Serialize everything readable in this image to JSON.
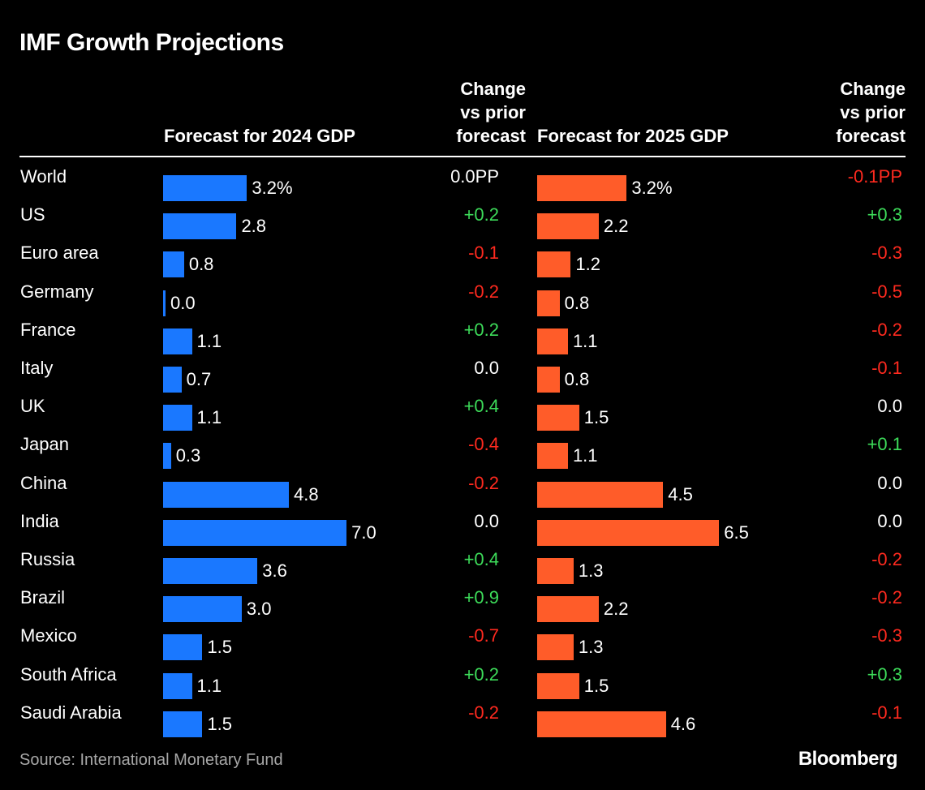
{
  "title": "IMF Growth Projections",
  "headers": {
    "gdp_2024": "Forecast for 2024 GDP",
    "change_2024": [
      "Change",
      "vs prior",
      "forecast"
    ],
    "gdp_2025": "Forecast for 2025 GDP",
    "change_2025": [
      "Change",
      "vs prior",
      "forecast"
    ]
  },
  "source": "Source: International Monetary Fund",
  "brand": "Bloomberg",
  "colors": {
    "bar_2024": "#1a78ff",
    "bar_2025": "#ff5c29",
    "positive": "#3ddc5a",
    "negative": "#ff2a1f",
    "neutral": "#ffffff"
  },
  "chart_data": {
    "type": "bar",
    "orientation": "horizontal",
    "title": "IMF Growth Projections",
    "categories": [
      "World",
      "US",
      "Euro area",
      "Germany",
      "France",
      "Italy",
      "UK",
      "Japan",
      "China",
      "India",
      "Russia",
      "Brazil",
      "Mexico",
      "South Africa",
      "Saudi Arabia"
    ],
    "series": [
      {
        "name": "Forecast for 2024 GDP",
        "values": [
          3.2,
          2.8,
          0.8,
          0.0,
          1.1,
          0.7,
          1.1,
          0.3,
          4.8,
          7.0,
          3.6,
          3.0,
          1.5,
          1.1,
          1.5
        ],
        "labels": [
          "3.2%",
          "2.8",
          "0.8",
          "0.0",
          "1.1",
          "0.7",
          "1.1",
          "0.3",
          "4.8",
          "7.0",
          "3.6",
          "3.0",
          "1.5",
          "1.1",
          "1.5"
        ]
      },
      {
        "name": "Forecast for 2025 GDP",
        "values": [
          3.2,
          2.2,
          1.2,
          0.8,
          1.1,
          0.8,
          1.5,
          1.1,
          4.5,
          6.5,
          1.3,
          2.2,
          1.3,
          1.5,
          4.6
        ],
        "labels": [
          "3.2%",
          "2.2",
          "1.2",
          "0.8",
          "1.1",
          "0.8",
          "1.5",
          "1.1",
          "4.5",
          "6.5",
          "1.3",
          "2.2",
          "1.3",
          "1.5",
          "4.6"
        ]
      }
    ],
    "changes": [
      {
        "name": "Change vs prior forecast (2024)",
        "values": [
          0.0,
          0.2,
          -0.1,
          -0.2,
          0.2,
          0.0,
          0.4,
          -0.4,
          -0.2,
          0.0,
          0.4,
          0.9,
          -0.7,
          0.2,
          -0.2
        ],
        "labels": [
          "0.0PP",
          "+0.2",
          "-0.1",
          "-0.2",
          "+0.2",
          "0.0",
          "+0.4",
          "-0.4",
          "-0.2",
          "0.0",
          "+0.4",
          "+0.9",
          "-0.7",
          "+0.2",
          "-0.2"
        ]
      },
      {
        "name": "Change vs prior forecast (2025)",
        "values": [
          -0.1,
          0.3,
          -0.3,
          -0.5,
          -0.2,
          -0.1,
          0.0,
          0.1,
          0.0,
          0.0,
          -0.2,
          -0.2,
          -0.3,
          0.3,
          -0.1
        ],
        "labels": [
          "-0.1PP",
          "+0.3",
          "-0.3",
          "-0.5",
          "-0.2",
          "-0.1",
          "0.0",
          "+0.1",
          "0.0",
          "0.0",
          "-0.2",
          "-0.2",
          "-0.3",
          "+0.3",
          "-0.1"
        ]
      }
    ]
  }
}
